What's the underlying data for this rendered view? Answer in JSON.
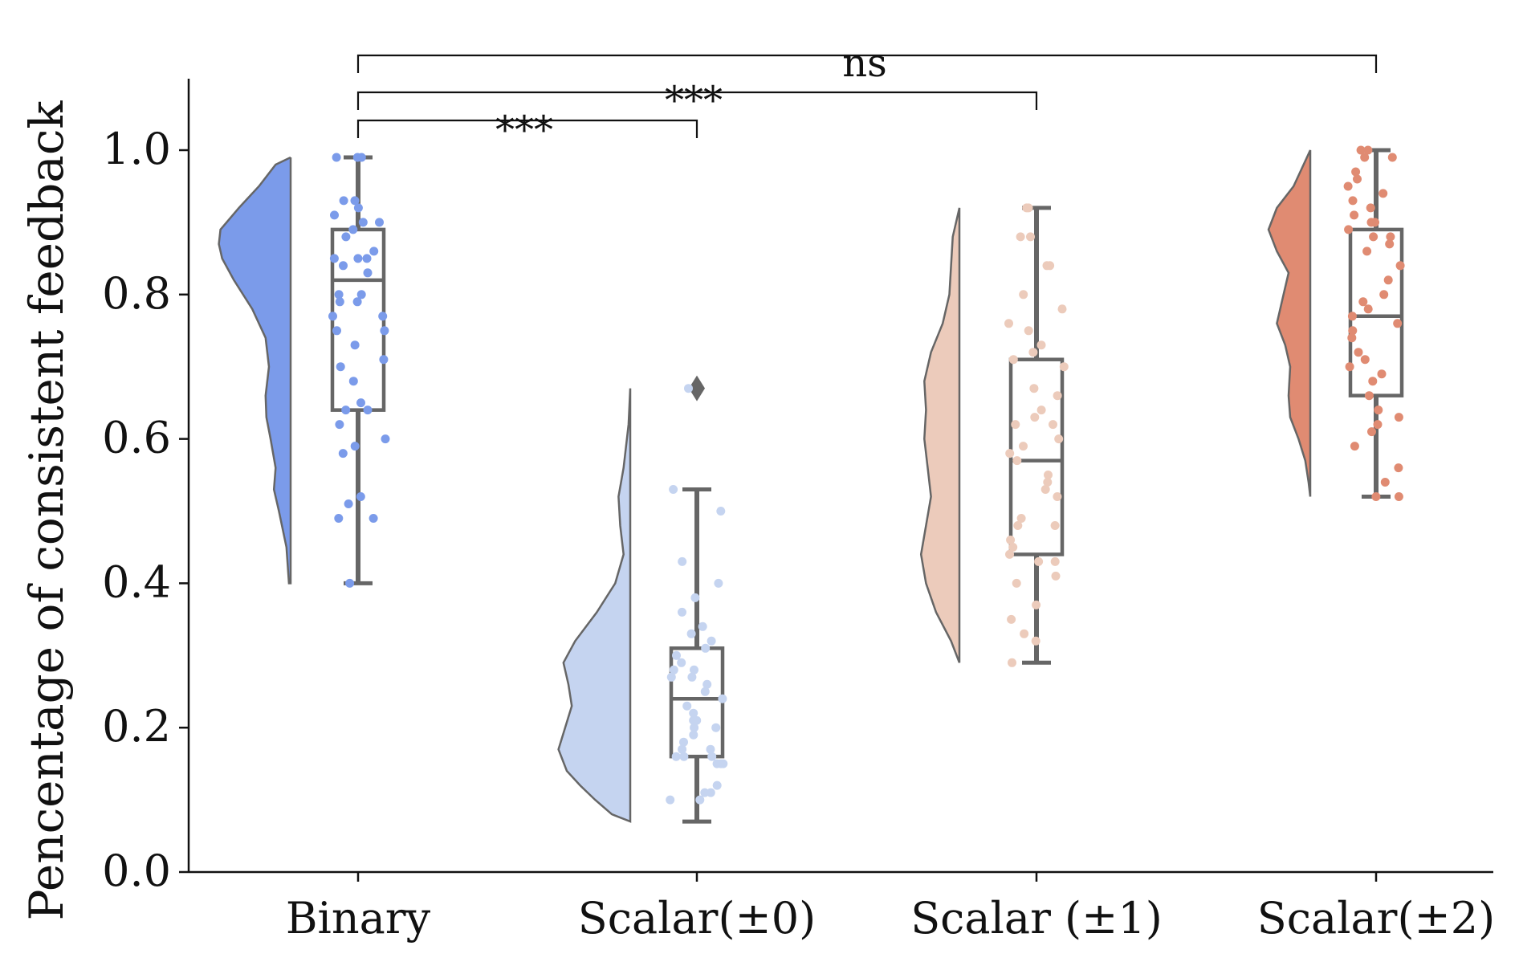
{
  "chart_data": {
    "type": "raincloud",
    "ylabel": "Pencentage of consistent feedback",
    "xlabel": "",
    "ylim": [
      0.0,
      1.1
    ],
    "yticks": [
      0.0,
      0.2,
      0.4,
      0.6,
      0.8,
      1.0
    ],
    "ytick_labels": [
      "0.0",
      "0.2",
      "0.4",
      "0.6",
      "0.8",
      "1.0"
    ],
    "grid": false,
    "categories": [
      "Binary",
      "Scalar(±0)",
      "Scalar (±1)",
      "Scalar(±2)"
    ],
    "series": [
      {
        "color": "#7b9bea",
        "box": {
          "min": 0.4,
          "q1": 0.64,
          "median": 0.82,
          "q3": 0.89,
          "max": 0.99
        },
        "outliers": [],
        "density": [
          [
            0.4,
            0.02
          ],
          [
            0.45,
            0.05
          ],
          [
            0.5,
            0.14
          ],
          [
            0.53,
            0.2
          ],
          [
            0.56,
            0.18
          ],
          [
            0.6,
            0.24
          ],
          [
            0.63,
            0.29
          ],
          [
            0.66,
            0.3
          ],
          [
            0.7,
            0.26
          ],
          [
            0.74,
            0.3
          ],
          [
            0.78,
            0.46
          ],
          [
            0.82,
            0.68
          ],
          [
            0.85,
            0.82
          ],
          [
            0.87,
            0.86
          ],
          [
            0.89,
            0.84
          ],
          [
            0.92,
            0.62
          ],
          [
            0.95,
            0.38
          ],
          [
            0.98,
            0.18
          ],
          [
            0.99,
            0.0
          ]
        ],
        "points": [
          0.99,
          0.99,
          0.99,
          0.93,
          0.93,
          0.92,
          0.91,
          0.9,
          0.9,
          0.89,
          0.88,
          0.86,
          0.85,
          0.85,
          0.85,
          0.84,
          0.83,
          0.8,
          0.8,
          0.79,
          0.79,
          0.77,
          0.77,
          0.75,
          0.75,
          0.73,
          0.71,
          0.7,
          0.68,
          0.65,
          0.64,
          0.64,
          0.62,
          0.6,
          0.59,
          0.58,
          0.52,
          0.51,
          0.49,
          0.49,
          0.4
        ]
      },
      {
        "color": "#c5d4f0",
        "box": {
          "min": 0.07,
          "q1": 0.16,
          "median": 0.24,
          "q3": 0.31,
          "max": 0.53
        },
        "outliers": [
          0.67
        ],
        "density": [
          [
            0.07,
            0.0
          ],
          [
            0.08,
            0.22
          ],
          [
            0.1,
            0.42
          ],
          [
            0.12,
            0.6
          ],
          [
            0.14,
            0.76
          ],
          [
            0.17,
            0.86
          ],
          [
            0.2,
            0.78
          ],
          [
            0.23,
            0.7
          ],
          [
            0.26,
            0.74
          ],
          [
            0.29,
            0.8
          ],
          [
            0.32,
            0.66
          ],
          [
            0.36,
            0.4
          ],
          [
            0.4,
            0.18
          ],
          [
            0.44,
            0.08
          ],
          [
            0.48,
            0.12
          ],
          [
            0.52,
            0.14
          ],
          [
            0.56,
            0.08
          ],
          [
            0.62,
            0.02
          ],
          [
            0.67,
            0.0
          ]
        ],
        "points": [
          0.67,
          0.53,
          0.5,
          0.43,
          0.4,
          0.38,
          0.36,
          0.34,
          0.33,
          0.32,
          0.31,
          0.3,
          0.29,
          0.28,
          0.28,
          0.27,
          0.27,
          0.26,
          0.25,
          0.24,
          0.23,
          0.22,
          0.21,
          0.21,
          0.2,
          0.2,
          0.19,
          0.18,
          0.17,
          0.17,
          0.16,
          0.16,
          0.16,
          0.15,
          0.15,
          0.15,
          0.12,
          0.11,
          0.11,
          0.1,
          0.1
        ]
      },
      {
        "color": "#eccbbb",
        "box": {
          "min": 0.29,
          "q1": 0.44,
          "median": 0.57,
          "q3": 0.71,
          "max": 0.92
        },
        "outliers": [],
        "density": [
          [
            0.29,
            0.0
          ],
          [
            0.32,
            0.1
          ],
          [
            0.36,
            0.28
          ],
          [
            0.4,
            0.4
          ],
          [
            0.44,
            0.46
          ],
          [
            0.48,
            0.4
          ],
          [
            0.52,
            0.34
          ],
          [
            0.56,
            0.38
          ],
          [
            0.6,
            0.42
          ],
          [
            0.64,
            0.4
          ],
          [
            0.68,
            0.42
          ],
          [
            0.72,
            0.34
          ],
          [
            0.76,
            0.2
          ],
          [
            0.8,
            0.12
          ],
          [
            0.84,
            0.1
          ],
          [
            0.88,
            0.08
          ],
          [
            0.92,
            0.0
          ]
        ],
        "points": [
          0.92,
          0.92,
          0.88,
          0.88,
          0.84,
          0.84,
          0.8,
          0.78,
          0.76,
          0.75,
          0.73,
          0.72,
          0.71,
          0.7,
          0.67,
          0.66,
          0.64,
          0.63,
          0.62,
          0.62,
          0.6,
          0.59,
          0.58,
          0.57,
          0.55,
          0.54,
          0.53,
          0.52,
          0.49,
          0.48,
          0.48,
          0.46,
          0.45,
          0.44,
          0.43,
          0.43,
          0.41,
          0.4,
          0.37,
          0.35,
          0.33,
          0.32,
          0.29
        ]
      },
      {
        "color": "#e08b72",
        "box": {
          "min": 0.52,
          "q1": 0.66,
          "median": 0.77,
          "q3": 0.89,
          "max": 1.0
        },
        "outliers": [],
        "density": [
          [
            0.52,
            0.0
          ],
          [
            0.54,
            0.02
          ],
          [
            0.57,
            0.06
          ],
          [
            0.6,
            0.14
          ],
          [
            0.63,
            0.24
          ],
          [
            0.66,
            0.26
          ],
          [
            0.7,
            0.24
          ],
          [
            0.73,
            0.3
          ],
          [
            0.76,
            0.4
          ],
          [
            0.8,
            0.32
          ],
          [
            0.83,
            0.26
          ],
          [
            0.86,
            0.4
          ],
          [
            0.89,
            0.5
          ],
          [
            0.92,
            0.4
          ],
          [
            0.95,
            0.2
          ],
          [
            0.98,
            0.08
          ],
          [
            1.0,
            0.0
          ]
        ],
        "points": [
          1.0,
          1.0,
          0.99,
          0.99,
          0.97,
          0.96,
          0.95,
          0.94,
          0.93,
          0.92,
          0.91,
          0.9,
          0.9,
          0.89,
          0.88,
          0.88,
          0.87,
          0.86,
          0.84,
          0.82,
          0.8,
          0.79,
          0.78,
          0.77,
          0.76,
          0.75,
          0.74,
          0.72,
          0.71,
          0.7,
          0.69,
          0.68,
          0.66,
          0.64,
          0.63,
          0.62,
          0.61,
          0.59,
          0.56,
          0.54,
          0.52,
          0.52
        ]
      }
    ],
    "significance": [
      {
        "from": 0,
        "to": 1,
        "label": "***"
      },
      {
        "from": 0,
        "to": 2,
        "label": "***"
      },
      {
        "from": 0,
        "to": 3,
        "label": "ns"
      }
    ]
  }
}
